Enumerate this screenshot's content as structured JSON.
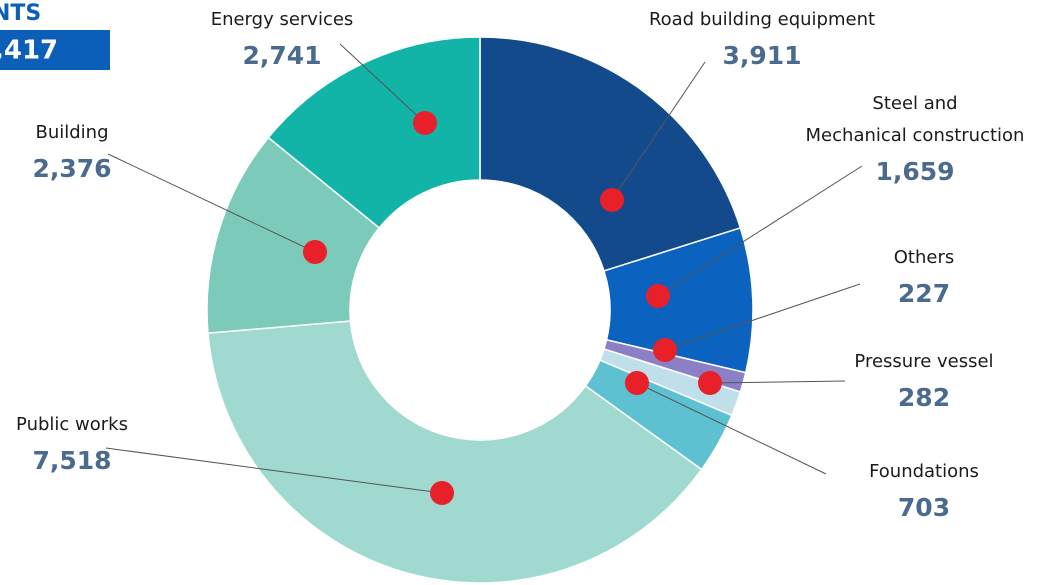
{
  "chart_data": {
    "type": "pie",
    "donut": true,
    "title": "NTS",
    "total_label": ",417",
    "categories": [
      "Road building equipment",
      "Steel and\nMechanical construction",
      "Others",
      "Pressure vessel",
      "Foundations",
      "Public works",
      "Building",
      "Energy services"
    ],
    "values": [
      3911,
      1659,
      227,
      282,
      703,
      7518,
      2376,
      2741
    ],
    "value_labels": [
      "3,911",
      "1,659",
      "227",
      "282",
      "703",
      "7,518",
      "2,376",
      "2,741"
    ],
    "colors": [
      "#124a8b",
      "#0b63bf",
      "#8b80c6",
      "#bfe0ea",
      "#5ec1d1",
      "#9fd9d0",
      "#7ccaba",
      "#12b4a8"
    ]
  }
}
